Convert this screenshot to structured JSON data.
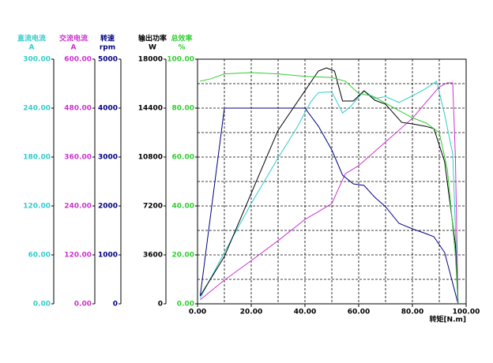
{
  "chart_data": {
    "type": "multi-axis-line",
    "x_label": "转矩[N.m]",
    "xlim": [
      0,
      100
    ],
    "xticks": [
      {
        "value": 0,
        "label": "0.00"
      },
      {
        "value": 20,
        "label": "20.00"
      },
      {
        "value": 40,
        "label": "40.00"
      },
      {
        "value": 60,
        "label": "60.00"
      },
      {
        "value": 80,
        "label": "80.00"
      },
      {
        "value": 100,
        "label": "100.00"
      }
    ],
    "xgrid": [
      0,
      10,
      20,
      30,
      40,
      50,
      60,
      70,
      80,
      90,
      100
    ],
    "ygrid": [
      0,
      10,
      20,
      30,
      40,
      50,
      60,
      70,
      80,
      90,
      100
    ],
    "grid_axis": 4,
    "axes": [
      {
        "name": "直流电流",
        "unit": "A",
        "color": "#33cccc",
        "ylim": [
          0,
          300
        ],
        "yticks": [
          {
            "value": 0,
            "label": "0.00"
          },
          {
            "value": 60,
            "label": "60.00"
          },
          {
            "value": 120,
            "label": "120.00"
          },
          {
            "value": 180,
            "label": "180.00"
          },
          {
            "value": 240,
            "label": "240.00"
          },
          {
            "value": 300,
            "label": "300.00"
          }
        ]
      },
      {
        "name": "交流电流",
        "unit": "A",
        "color": "#cc33cc",
        "ylim": [
          0,
          600
        ],
        "yticks": [
          {
            "value": 0,
            "label": "0.00"
          },
          {
            "value": 120,
            "label": "120.00"
          },
          {
            "value": 240,
            "label": "240.00"
          },
          {
            "value": 360,
            "label": "360.00"
          },
          {
            "value": 480,
            "label": "480.00"
          },
          {
            "value": 600,
            "label": "600.00"
          }
        ]
      },
      {
        "name": "转速",
        "unit": "rpm",
        "color": "#000080",
        "ylim": [
          0,
          5000
        ],
        "yticks": [
          0,
          1000,
          2000,
          3000,
          4000,
          5000
        ]
      },
      {
        "name": "输出功率",
        "unit": "W",
        "color": "#000000",
        "ylim": [
          0,
          18000
        ],
        "yticks": [
          0,
          3600,
          7200,
          10800,
          14400,
          18000
        ]
      },
      {
        "name": "总效率",
        "unit": "%",
        "color": "#33cc33",
        "ylim": [
          0,
          100
        ],
        "yticks": [
          {
            "value": 0,
            "label": "0.00"
          },
          {
            "value": 20,
            "label": "20.00"
          },
          {
            "value": 40,
            "label": "40.00"
          },
          {
            "value": 60,
            "label": "60.00"
          },
          {
            "value": 80,
            "label": "80.00"
          },
          {
            "value": 100,
            "label": "100.00"
          }
        ]
      }
    ],
    "series": [
      {
        "axis": 0,
        "x": [
          1,
          10,
          20,
          30,
          37,
          42,
          45,
          50,
          54,
          57,
          62,
          66,
          70,
          75,
          80,
          85,
          89,
          92,
          95,
          97
        ],
        "values": [
          7,
          63,
          123,
          179,
          216,
          247,
          259,
          260,
          234,
          242,
          261,
          252,
          254,
          247,
          255,
          264,
          273,
          232,
          184,
          0
        ]
      },
      {
        "axis": 1,
        "x": [
          1,
          10,
          20,
          30,
          40,
          45,
          50,
          55,
          60,
          70,
          80,
          85,
          90,
          93,
          95,
          96,
          97
        ],
        "values": [
          10,
          58,
          106,
          155,
          207,
          226,
          246,
          319,
          339,
          397,
          455,
          494,
          532,
          542,
          542,
          358,
          0
        ]
      },
      {
        "axis": 2,
        "x": [
          1,
          10,
          20,
          30,
          40,
          45,
          50,
          54,
          58,
          62,
          66,
          70,
          75,
          80,
          85,
          88,
          92,
          97
        ],
        "values": [
          161,
          4000,
          4000,
          4000,
          4000,
          3630,
          3145,
          2629,
          2452,
          2419,
          2177,
          1984,
          1645,
          1532,
          1435,
          1371,
          1048,
          0
        ]
      },
      {
        "axis": 3,
        "x": [
          1,
          10,
          20,
          30,
          40,
          45,
          48,
          51,
          54,
          58,
          62,
          66,
          70,
          76,
          80,
          85,
          88,
          92,
          96,
          97
        ],
        "values": [
          580,
          3480,
          8130,
          12770,
          15680,
          17130,
          17360,
          17130,
          14920,
          14920,
          15680,
          14980,
          14690,
          13350,
          13240,
          13060,
          12890,
          10450,
          4350,
          0
        ]
      },
      {
        "axis": 4,
        "x": [
          1,
          5,
          10,
          20,
          30,
          40,
          50,
          55,
          60,
          65,
          70,
          75,
          80,
          85,
          90,
          93,
          96,
          97
        ],
        "values": [
          91,
          92,
          94,
          94.5,
          94,
          93,
          92.5,
          91,
          86,
          85,
          82,
          79,
          76,
          74,
          70,
          55,
          20,
          0
        ]
      }
    ]
  }
}
